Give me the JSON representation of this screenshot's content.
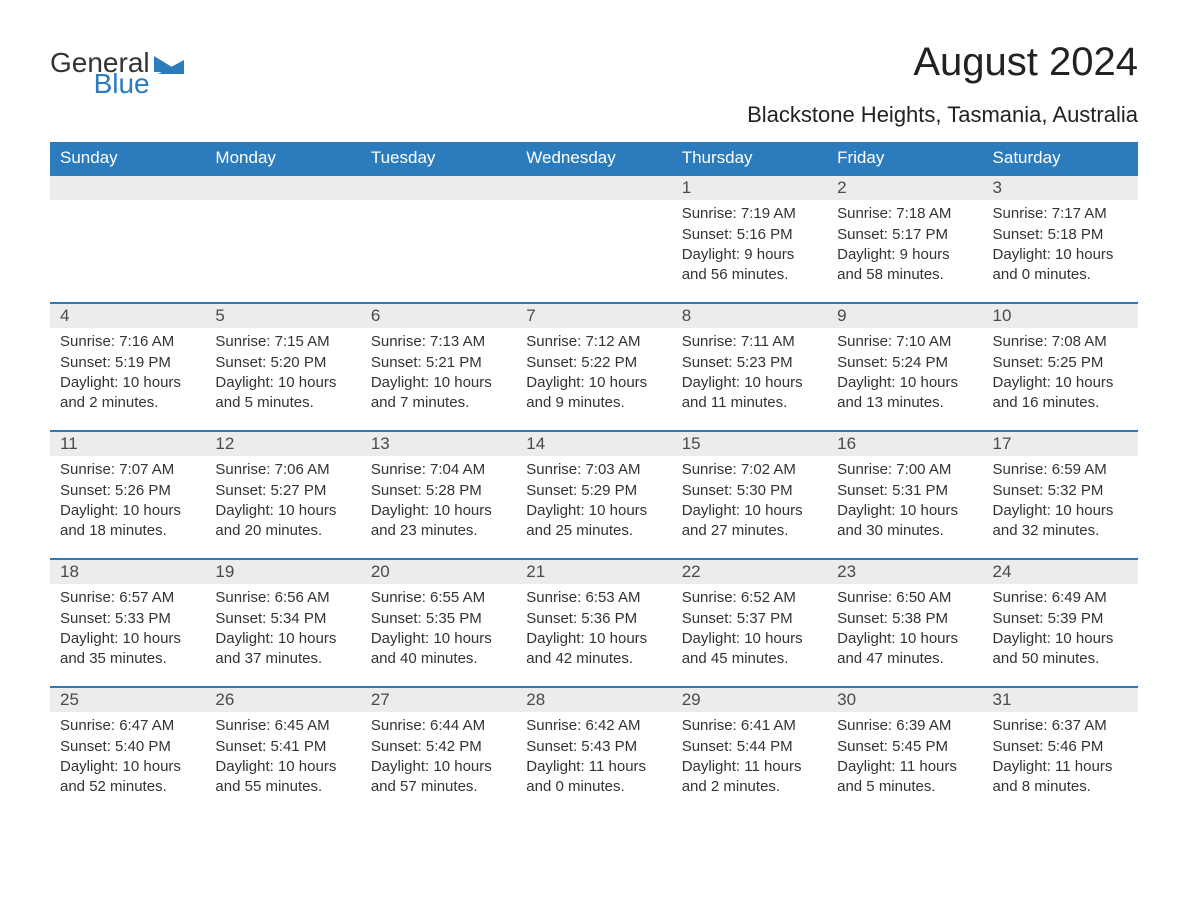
{
  "logo": {
    "general": "General",
    "blue": "Blue"
  },
  "title": "August 2024",
  "subtitle": "Blackstone Heights, Tasmania, Australia",
  "colors": {
    "header_bg": "#2b7bbd",
    "header_text": "#ffffff",
    "daynum_bg": "#ececec",
    "daynum_border": "#2b7bbd",
    "body_text": "#333333",
    "background": "#ffffff"
  },
  "columns": [
    "Sunday",
    "Monday",
    "Tuesday",
    "Wednesday",
    "Thursday",
    "Friday",
    "Saturday"
  ],
  "weeks": [
    [
      null,
      null,
      null,
      null,
      {
        "num": "1",
        "sunrise": "7:19 AM",
        "sunset": "5:16 PM",
        "daylight": "9 hours and 56 minutes."
      },
      {
        "num": "2",
        "sunrise": "7:18 AM",
        "sunset": "5:17 PM",
        "daylight": "9 hours and 58 minutes."
      },
      {
        "num": "3",
        "sunrise": "7:17 AM",
        "sunset": "5:18 PM",
        "daylight": "10 hours and 0 minutes."
      }
    ],
    [
      {
        "num": "4",
        "sunrise": "7:16 AM",
        "sunset": "5:19 PM",
        "daylight": "10 hours and 2 minutes."
      },
      {
        "num": "5",
        "sunrise": "7:15 AM",
        "sunset": "5:20 PM",
        "daylight": "10 hours and 5 minutes."
      },
      {
        "num": "6",
        "sunrise": "7:13 AM",
        "sunset": "5:21 PM",
        "daylight": "10 hours and 7 minutes."
      },
      {
        "num": "7",
        "sunrise": "7:12 AM",
        "sunset": "5:22 PM",
        "daylight": "10 hours and 9 minutes."
      },
      {
        "num": "8",
        "sunrise": "7:11 AM",
        "sunset": "5:23 PM",
        "daylight": "10 hours and 11 minutes."
      },
      {
        "num": "9",
        "sunrise": "7:10 AM",
        "sunset": "5:24 PM",
        "daylight": "10 hours and 13 minutes."
      },
      {
        "num": "10",
        "sunrise": "7:08 AM",
        "sunset": "5:25 PM",
        "daylight": "10 hours and 16 minutes."
      }
    ],
    [
      {
        "num": "11",
        "sunrise": "7:07 AM",
        "sunset": "5:26 PM",
        "daylight": "10 hours and 18 minutes."
      },
      {
        "num": "12",
        "sunrise": "7:06 AM",
        "sunset": "5:27 PM",
        "daylight": "10 hours and 20 minutes."
      },
      {
        "num": "13",
        "sunrise": "7:04 AM",
        "sunset": "5:28 PM",
        "daylight": "10 hours and 23 minutes."
      },
      {
        "num": "14",
        "sunrise": "7:03 AM",
        "sunset": "5:29 PM",
        "daylight": "10 hours and 25 minutes."
      },
      {
        "num": "15",
        "sunrise": "7:02 AM",
        "sunset": "5:30 PM",
        "daylight": "10 hours and 27 minutes."
      },
      {
        "num": "16",
        "sunrise": "7:00 AM",
        "sunset": "5:31 PM",
        "daylight": "10 hours and 30 minutes."
      },
      {
        "num": "17",
        "sunrise": "6:59 AM",
        "sunset": "5:32 PM",
        "daylight": "10 hours and 32 minutes."
      }
    ],
    [
      {
        "num": "18",
        "sunrise": "6:57 AM",
        "sunset": "5:33 PM",
        "daylight": "10 hours and 35 minutes."
      },
      {
        "num": "19",
        "sunrise": "6:56 AM",
        "sunset": "5:34 PM",
        "daylight": "10 hours and 37 minutes."
      },
      {
        "num": "20",
        "sunrise": "6:55 AM",
        "sunset": "5:35 PM",
        "daylight": "10 hours and 40 minutes."
      },
      {
        "num": "21",
        "sunrise": "6:53 AM",
        "sunset": "5:36 PM",
        "daylight": "10 hours and 42 minutes."
      },
      {
        "num": "22",
        "sunrise": "6:52 AM",
        "sunset": "5:37 PM",
        "daylight": "10 hours and 45 minutes."
      },
      {
        "num": "23",
        "sunrise": "6:50 AM",
        "sunset": "5:38 PM",
        "daylight": "10 hours and 47 minutes."
      },
      {
        "num": "24",
        "sunrise": "6:49 AM",
        "sunset": "5:39 PM",
        "daylight": "10 hours and 50 minutes."
      }
    ],
    [
      {
        "num": "25",
        "sunrise": "6:47 AM",
        "sunset": "5:40 PM",
        "daylight": "10 hours and 52 minutes."
      },
      {
        "num": "26",
        "sunrise": "6:45 AM",
        "sunset": "5:41 PM",
        "daylight": "10 hours and 55 minutes."
      },
      {
        "num": "27",
        "sunrise": "6:44 AM",
        "sunset": "5:42 PM",
        "daylight": "10 hours and 57 minutes."
      },
      {
        "num": "28",
        "sunrise": "6:42 AM",
        "sunset": "5:43 PM",
        "daylight": "11 hours and 0 minutes."
      },
      {
        "num": "29",
        "sunrise": "6:41 AM",
        "sunset": "5:44 PM",
        "daylight": "11 hours and 2 minutes."
      },
      {
        "num": "30",
        "sunrise": "6:39 AM",
        "sunset": "5:45 PM",
        "daylight": "11 hours and 5 minutes."
      },
      {
        "num": "31",
        "sunrise": "6:37 AM",
        "sunset": "5:46 PM",
        "daylight": "11 hours and 8 minutes."
      }
    ]
  ],
  "labels": {
    "sunrise": "Sunrise: ",
    "sunset": "Sunset: ",
    "daylight": "Daylight: "
  }
}
